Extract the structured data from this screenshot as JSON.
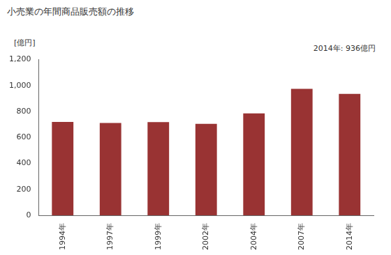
{
  "chart_data": {
    "type": "bar",
    "title": "小売業の年間商品販売額の推移",
    "y_label": "[億円]",
    "annotation": "2014年: 936億円",
    "categories": [
      "1994年",
      "1997年",
      "1999年",
      "2002年",
      "2004年",
      "2007年",
      "2014年"
    ],
    "values": [
      720,
      712,
      718,
      705,
      785,
      975,
      936
    ],
    "color": "#993333",
    "ylim": [
      0,
      1200
    ],
    "yticks": [
      0,
      200,
      400,
      600,
      800,
      {
        "value": 1000,
        "label": "1,000"
      },
      {
        "value": 1200,
        "label": "1,200"
      }
    ],
    "grid": false
  }
}
